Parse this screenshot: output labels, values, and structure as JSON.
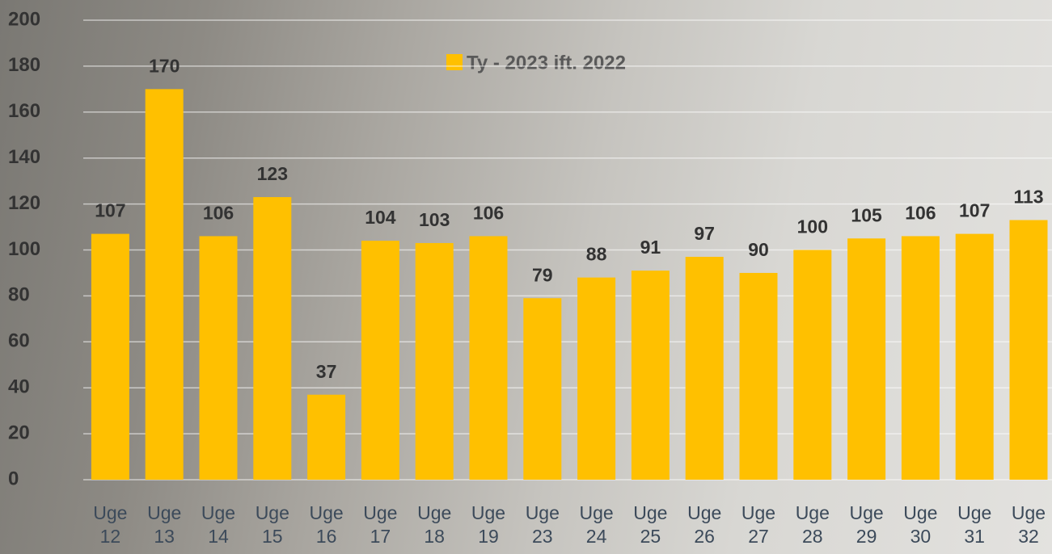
{
  "chart_data": {
    "type": "bar",
    "categories": [
      "Uge 12",
      "Uge 13",
      "Uge 14",
      "Uge 15",
      "Uge 16",
      "Uge 17",
      "Uge 18",
      "Uge 19",
      "Uge 23",
      "Uge 24",
      "Uge 25",
      "Uge 26",
      "Uge 27",
      "Uge 28",
      "Uge 29",
      "Uge 30",
      "Uge 31",
      "Uge 32"
    ],
    "series": [
      {
        "name": "Ty - 2023 ift. 2022",
        "color": "#ffc000",
        "values": [
          107,
          170,
          106,
          123,
          37,
          104,
          103,
          106,
          79,
          88,
          91,
          97,
          90,
          100,
          105,
          106,
          107,
          113
        ]
      }
    ],
    "ylim": [
      0,
      200
    ],
    "yticks": [
      0,
      20,
      40,
      60,
      80,
      100,
      120,
      140,
      160,
      180,
      200
    ],
    "grid": true,
    "legend": "top"
  }
}
